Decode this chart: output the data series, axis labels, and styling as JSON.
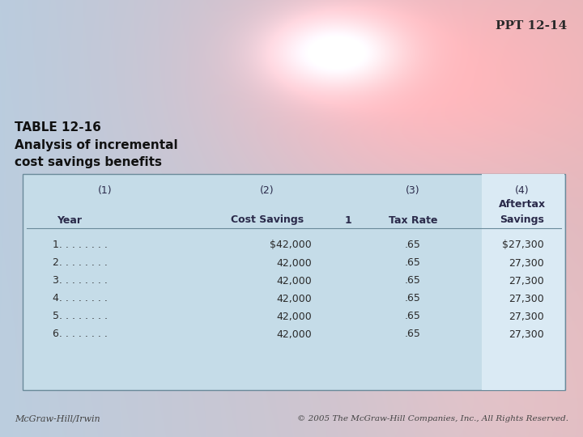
{
  "ppt_label": "PPT 12-14",
  "title_line1": "TABLE 12-16",
  "title_line2": "Analysis of incremental",
  "title_line3": "cost savings benefits",
  "col_headers_row1": [
    "(1)",
    "(2)",
    "",
    "(3)",
    "(4)"
  ],
  "col_headers_row2_aftertax": "Aftertax",
  "col_headers_row3": [
    "Year",
    "Cost Savings",
    "1",
    "Tax Rate",
    "Savings"
  ],
  "rows": [
    [
      "1. . . . . . . .",
      "$42,000",
      "",
      ".65",
      "$27,300"
    ],
    [
      "2. . . . . . . .",
      "42,000",
      "",
      ".65",
      "27,300"
    ],
    [
      "3. . . . . . . .",
      "42,000",
      "",
      ".65",
      "27,300"
    ],
    [
      "4. . . . . . . .",
      "42,000",
      "",
      ".65",
      "27,300"
    ],
    [
      "5. . . . . . . .",
      "42,000",
      "",
      ".65",
      "27,300"
    ],
    [
      "6. . . . . . . .",
      "42,000",
      "",
      ".65",
      "27,300"
    ]
  ],
  "footer_left": "McGraw-Hill/Irwin",
  "footer_right": "© 2005 The McGraw-Hill Companies, Inc., All Rights Reserved.",
  "table_bg": "#c5dce8",
  "table_border": "#6a8a9a",
  "last_col_bg": "#daeaf4",
  "title_color": "#111111",
  "header_color": "#2a2a4a",
  "data_color": "#2a2a2a",
  "ppt_color": "#2a2a2a",
  "footer_color": "#444444"
}
